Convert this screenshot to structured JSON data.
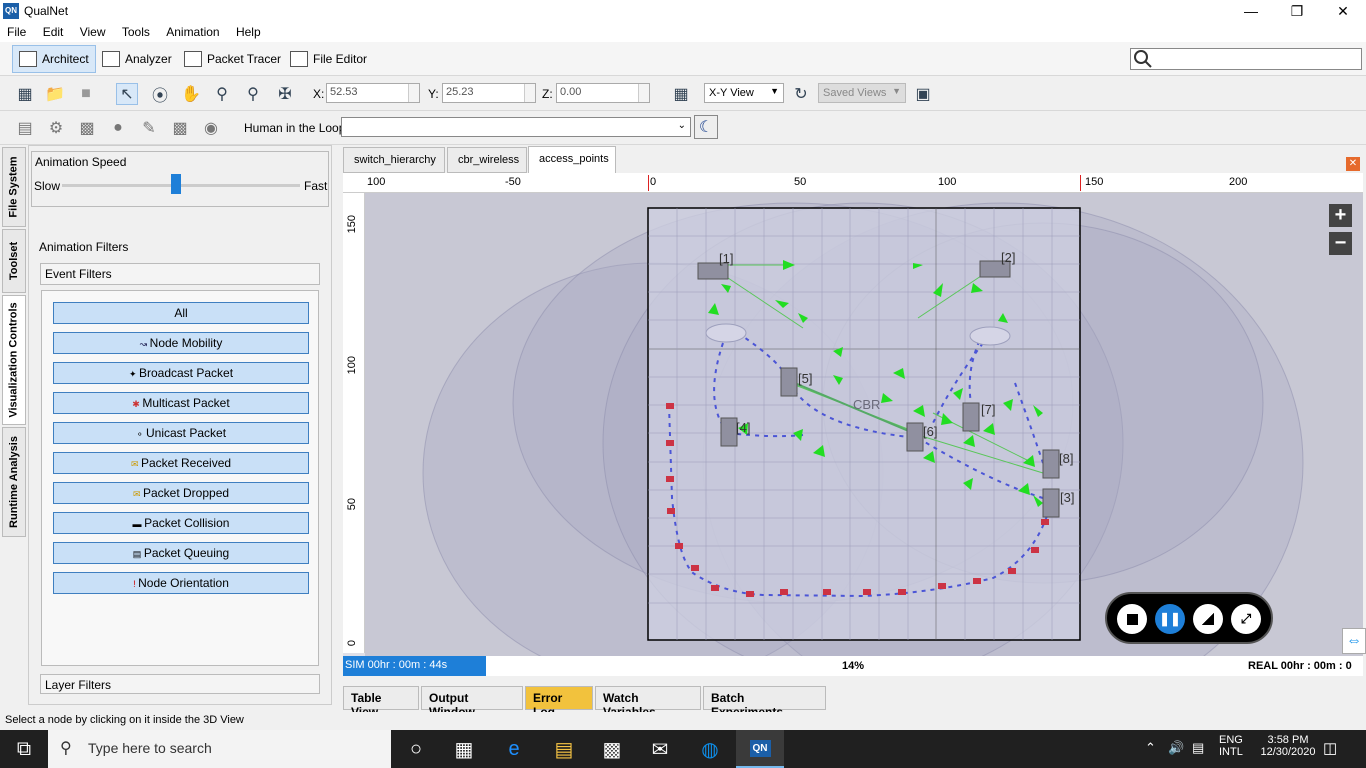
{
  "window": {
    "title": "QualNet",
    "app_icon": "QN"
  },
  "menu": [
    "File",
    "Edit",
    "View",
    "Tools",
    "Animation",
    "Help"
  ],
  "modes": [
    "Architect",
    "Analyzer",
    "Packet Tracer",
    "File Editor"
  ],
  "coords": {
    "x_label": "X:",
    "x": "52.53",
    "y_label": "Y:",
    "y": "25.23",
    "z_label": "Z:",
    "z": "0.00"
  },
  "view_select": "X-Y View",
  "saved_views": "Saved Views",
  "hitl_label": "Human in the Loop:",
  "side_tabs": [
    "File System",
    "Toolset",
    "Visualization Controls",
    "Runtime Analysis"
  ],
  "animation_speed": {
    "title": "Animation Speed",
    "slow": "Slow",
    "fast": "Fast",
    "level": 0.48
  },
  "animation_filters": "Animation Filters",
  "event_filters": "Event Filters",
  "event_buttons": [
    "All",
    "Node Mobility",
    "Broadcast Packet",
    "Multicast Packet",
    "Unicast Packet",
    "Packet Received",
    "Packet Dropped",
    "Packet Collision",
    "Packet Queuing",
    "Node Orientation"
  ],
  "layer_filters": "Layer Filters",
  "canvas_tabs": [
    "switch_hierarchy",
    "cbr_wireless",
    "access_points"
  ],
  "ruler_top": [
    "100",
    "-50",
    "0",
    "50",
    "100",
    "150",
    "200"
  ],
  "ruler_left": [
    "150",
    "100",
    "50",
    "0"
  ],
  "nodes": [
    "[1]",
    "[2]",
    "[3]",
    "[4]",
    "[5]",
    "[6]",
    "[7]",
    "[8]"
  ],
  "cbr_label": "CBR",
  "sim_time": "SIM 00hr : 00m : 44s",
  "progress": "14%",
  "real_time": "REAL 00hr : 00m : 0",
  "bottom_tabs": [
    "Table View",
    "Output Window",
    "Error Log",
    "Watch Variables",
    "Batch Experiments"
  ],
  "status_message": "Select a node by clicking on it inside the 3D View",
  "taskbar": {
    "search_placeholder": "Type here to search",
    "lang1": "ENG",
    "lang2": "INTL",
    "time": "3:58 PM",
    "date": "12/30/2020"
  }
}
